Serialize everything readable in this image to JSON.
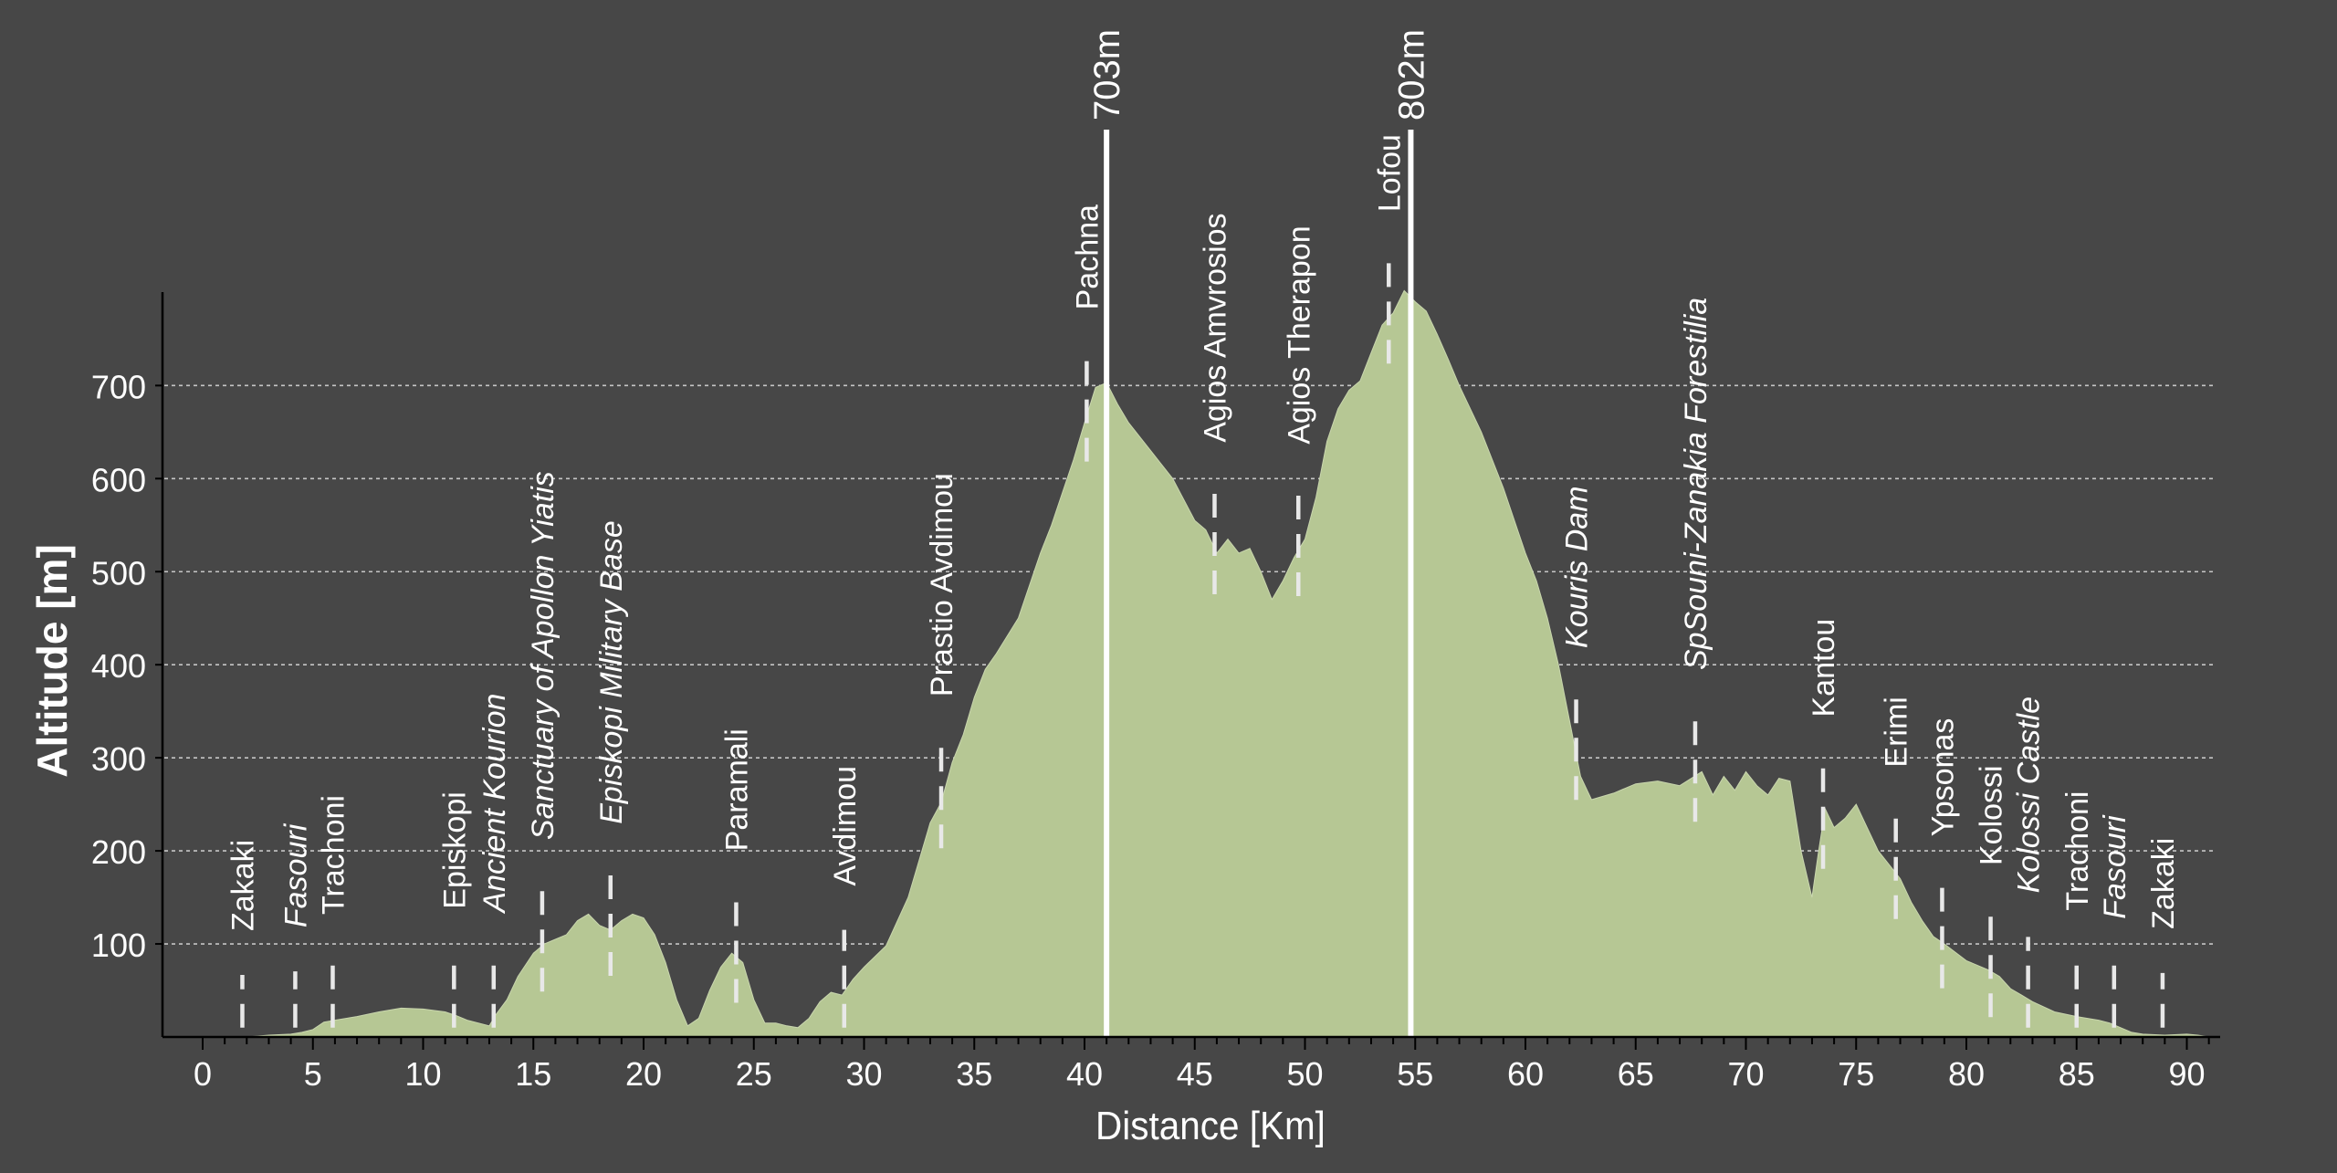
{
  "chart_data": {
    "type": "area",
    "xlabel": "Distance [Km]",
    "ylabel": "Altitude [m]",
    "xlim": [
      0,
      92
    ],
    "ylim": [
      0,
      810
    ],
    "xticks": [
      0,
      5,
      10,
      15,
      20,
      25,
      30,
      35,
      40,
      45,
      50,
      55,
      60,
      65,
      70,
      75,
      80,
      85,
      90
    ],
    "yticks": [
      100,
      200,
      300,
      400,
      500,
      600,
      700
    ],
    "grid": "horizontal dashed",
    "colors": {
      "background": "#474747",
      "fill": "#b6c794",
      "text": "#ffffff",
      "grid": "#dddddd"
    },
    "series": [
      {
        "values": [
          [
            0,
            0
          ],
          [
            1,
            0
          ],
          [
            2,
            0
          ],
          [
            3,
            2
          ],
          [
            4,
            3
          ],
          [
            4.5,
            5
          ],
          [
            5,
            8
          ],
          [
            5.5,
            16
          ],
          [
            6,
            18
          ],
          [
            6.5,
            20
          ],
          [
            7,
            22
          ],
          [
            8,
            27
          ],
          [
            9,
            31
          ],
          [
            10,
            30
          ],
          [
            11,
            27
          ],
          [
            11.5,
            23
          ],
          [
            12,
            18
          ],
          [
            12.5,
            15
          ],
          [
            13,
            12
          ],
          [
            13.3,
            24
          ],
          [
            13.8,
            40
          ],
          [
            14.3,
            65
          ],
          [
            15,
            90
          ],
          [
            15.5,
            100
          ],
          [
            16,
            105
          ],
          [
            16.5,
            110
          ],
          [
            17,
            125
          ],
          [
            17.5,
            132
          ],
          [
            18,
            120
          ],
          [
            18.5,
            115
          ],
          [
            19,
            125
          ],
          [
            19.5,
            132
          ],
          [
            20,
            128
          ],
          [
            20.5,
            110
          ],
          [
            21,
            80
          ],
          [
            21.5,
            40
          ],
          [
            22,
            12
          ],
          [
            22.5,
            20
          ],
          [
            23,
            50
          ],
          [
            23.5,
            75
          ],
          [
            24,
            90
          ],
          [
            24.5,
            80
          ],
          [
            25,
            40
          ],
          [
            25.5,
            15
          ],
          [
            26,
            15
          ],
          [
            26.5,
            12
          ],
          [
            27,
            10
          ],
          [
            27.5,
            20
          ],
          [
            28,
            38
          ],
          [
            28.5,
            48
          ],
          [
            29,
            45
          ],
          [
            29.5,
            62
          ],
          [
            30,
            75
          ],
          [
            31,
            98
          ],
          [
            32,
            150
          ],
          [
            32.5,
            190
          ],
          [
            33,
            230
          ],
          [
            33.5,
            252
          ],
          [
            34,
            295
          ],
          [
            34.5,
            325
          ],
          [
            35,
            365
          ],
          [
            35.5,
            395
          ],
          [
            36,
            412
          ],
          [
            37,
            450
          ],
          [
            38,
            520
          ],
          [
            38.5,
            550
          ],
          [
            39,
            585
          ],
          [
            39.5,
            620
          ],
          [
            40,
            660
          ],
          [
            40.5,
            698
          ],
          [
            41,
            703
          ],
          [
            41.5,
            680
          ],
          [
            42,
            660
          ],
          [
            43,
            630
          ],
          [
            44,
            600
          ],
          [
            45,
            555
          ],
          [
            45.5,
            545
          ],
          [
            46,
            520
          ],
          [
            46.5,
            535
          ],
          [
            47,
            520
          ],
          [
            47.5,
            525
          ],
          [
            48,
            500
          ],
          [
            48.5,
            470
          ],
          [
            49,
            490
          ],
          [
            49.5,
            515
          ],
          [
            50,
            535
          ],
          [
            50.5,
            580
          ],
          [
            51,
            640
          ],
          [
            51.5,
            675
          ],
          [
            52,
            695
          ],
          [
            52.5,
            705
          ],
          [
            53,
            735
          ],
          [
            53.5,
            765
          ],
          [
            54,
            778
          ],
          [
            54.5,
            802
          ],
          [
            55,
            790
          ],
          [
            55.5,
            780
          ],
          [
            56,
            755
          ],
          [
            56.5,
            728
          ],
          [
            57,
            700
          ],
          [
            58,
            650
          ],
          [
            59,
            590
          ],
          [
            60,
            520
          ],
          [
            60.5,
            490
          ],
          [
            61,
            450
          ],
          [
            61.5,
            400
          ],
          [
            62,
            340
          ],
          [
            62.5,
            280
          ],
          [
            63,
            255
          ],
          [
            64,
            262
          ],
          [
            65,
            272
          ],
          [
            66,
            275
          ],
          [
            67,
            270
          ],
          [
            68,
            285
          ],
          [
            68.5,
            260
          ],
          [
            69,
            280
          ],
          [
            69.5,
            265
          ],
          [
            70,
            285
          ],
          [
            70.5,
            270
          ],
          [
            71,
            260
          ],
          [
            71.5,
            278
          ],
          [
            72,
            275
          ],
          [
            72.5,
            200
          ],
          [
            73,
            150
          ],
          [
            73.3,
            200
          ],
          [
            73.6,
            245
          ],
          [
            74,
            225
          ],
          [
            74.5,
            235
          ],
          [
            75,
            250
          ],
          [
            75.5,
            225
          ],
          [
            76,
            200
          ],
          [
            77,
            170
          ],
          [
            77.5,
            145
          ],
          [
            78,
            125
          ],
          [
            78.5,
            108
          ],
          [
            79,
            100
          ],
          [
            80,
            82
          ],
          [
            81,
            72
          ],
          [
            81.5,
            65
          ],
          [
            82,
            52
          ],
          [
            82.5,
            45
          ],
          [
            83,
            38
          ],
          [
            84,
            27
          ],
          [
            85,
            22
          ],
          [
            85.5,
            20
          ],
          [
            86,
            18
          ],
          [
            86.5,
            15
          ],
          [
            87,
            10
          ],
          [
            87.5,
            5
          ],
          [
            88,
            3
          ],
          [
            89,
            2
          ],
          [
            90,
            3
          ],
          [
            90.5,
            2
          ],
          [
            91,
            0
          ]
        ]
      }
    ],
    "peaks": [
      {
        "x": 41,
        "label": "703m"
      },
      {
        "x": 54.8,
        "label": "802m"
      }
    ],
    "waypoints": [
      {
        "x": 1.8,
        "label": "Zakaki",
        "italic": false
      },
      {
        "x": 4.2,
        "label": "Fasouri",
        "italic": true
      },
      {
        "x": 5.9,
        "label": "Trachoni",
        "italic": false
      },
      {
        "x": 11.4,
        "label": "Episkopi",
        "italic": false
      },
      {
        "x": 13.2,
        "label": "Ancient Kourion",
        "italic": true
      },
      {
        "x": 15.4,
        "label": "Sanctuary of Apollon Yiatis",
        "italic": true
      },
      {
        "x": 18.5,
        "label": "Episkopi Military Base",
        "italic": true
      },
      {
        "x": 24.2,
        "label": "Paramali",
        "italic": false
      },
      {
        "x": 29.1,
        "label": "Avdimou",
        "italic": false
      },
      {
        "x": 33.5,
        "label": "Prastio Avdimou",
        "italic": false
      },
      {
        "x": 40.1,
        "label": "Pachna",
        "italic": false
      },
      {
        "x": 45.9,
        "label": "Agios Amvrosios",
        "italic": false
      },
      {
        "x": 49.7,
        "label": "Agios Therapon",
        "italic": false
      },
      {
        "x": 53.8,
        "label": "Lofou",
        "italic": false
      },
      {
        "x": 62.3,
        "label": "Kouris Dam",
        "italic": true
      },
      {
        "x": 67.7,
        "label": "SpSouni-Zanakia Forestilia",
        "italic": true
      },
      {
        "x": 73.5,
        "label": "Kantou",
        "italic": false
      },
      {
        "x": 76.8,
        "label": "Erimi",
        "italic": false
      },
      {
        "x": 78.9,
        "label": "Ypsonas",
        "italic": false
      },
      {
        "x": 81.1,
        "label": "Kolossi",
        "italic": false
      },
      {
        "x": 82.8,
        "label": "Kolossi Castle",
        "italic": true
      },
      {
        "x": 85,
        "label": "Trachoni",
        "italic": false
      },
      {
        "x": 86.7,
        "label": "Fasouri",
        "italic": true
      },
      {
        "x": 88.9,
        "label": "Zakaki",
        "italic": false
      }
    ]
  }
}
